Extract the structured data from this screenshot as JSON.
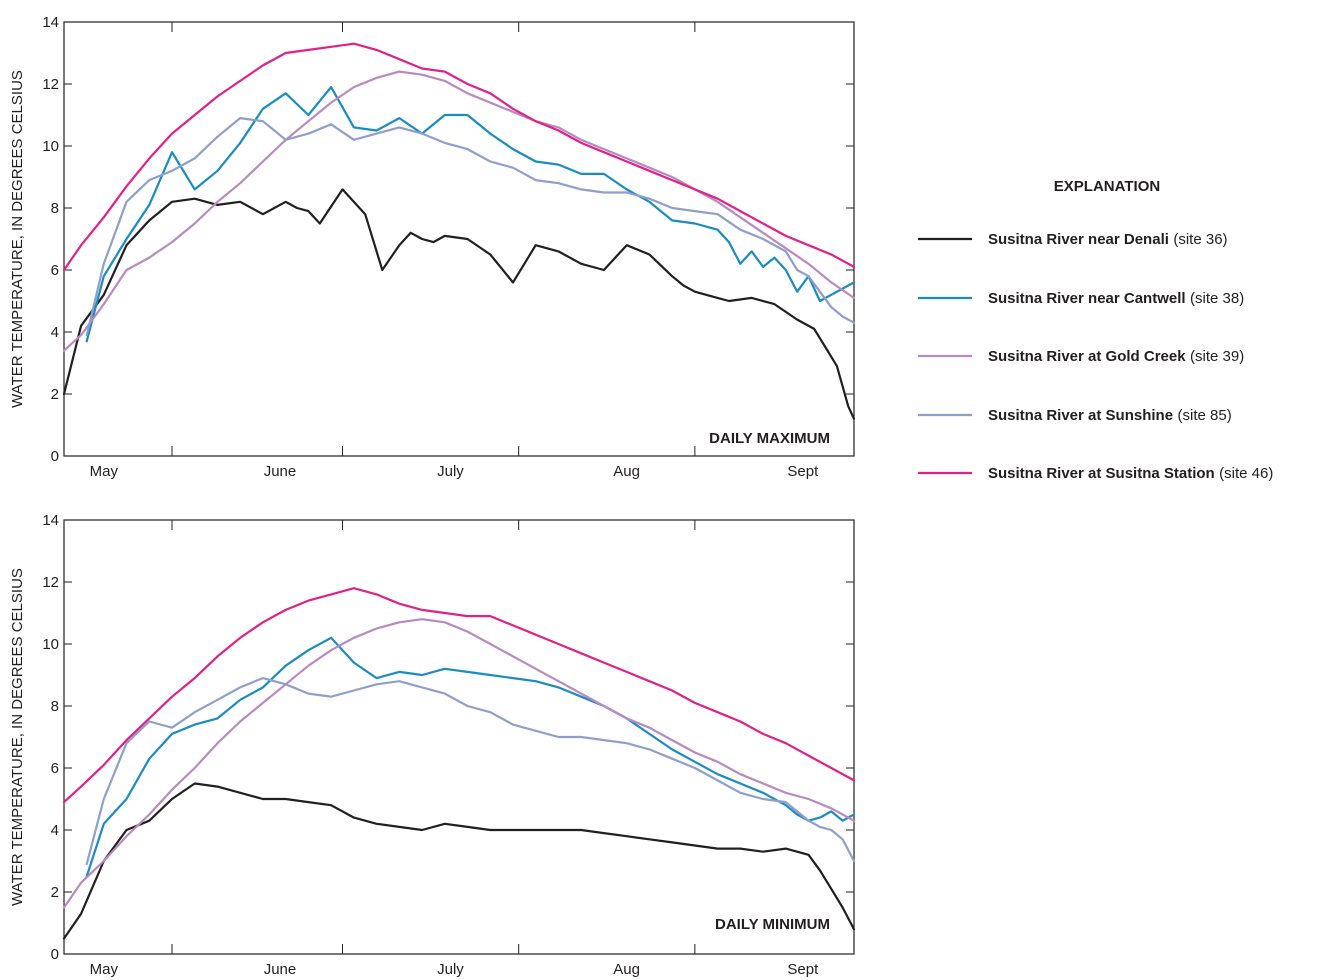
{
  "legend": {
    "title": "EXPLANATION",
    "entries": [
      {
        "name": "Susitna River near Denali",
        "site": "(site 36)",
        "color": "#231f20"
      },
      {
        "name": "Susitna River near Cantwell",
        "site": "(site 38)",
        "color": "#1a8cc1"
      },
      {
        "name": "Susitna River at Gold Creek",
        "site": "(site 39)",
        "color": "#b98ac0"
      },
      {
        "name": "Susitna River at Sunshine",
        "site": "(site 85)",
        "color": "#8f9fcb"
      },
      {
        "name": "Susitna River at Susitna Station",
        "site": "(site 46)",
        "color": "#e0218a"
      }
    ]
  },
  "chart_data": [
    {
      "type": "line",
      "panel_label": "DAILY MAXIMUM",
      "ylabel": "WATER TEMPERATURE, IN DEGREES CELSIUS",
      "ylim": [
        0,
        14
      ],
      "yticks": [
        "0",
        "2",
        "4",
        "6",
        "8",
        "10",
        "12",
        "14"
      ],
      "x_range_days": [
        1,
        140
      ],
      "month_labels": [
        "May",
        "June",
        "July",
        "Aug",
        "Sept"
      ],
      "month_label_days": [
        8,
        39,
        69,
        100,
        131
      ],
      "month_boundaries": [
        20,
        50,
        81,
        112
      ],
      "series": [
        {
          "name": "Susitna River near Denali",
          "color": "#231f20",
          "x": [
            1,
            4,
            8,
            12,
            16,
            20,
            24,
            28,
            32,
            36,
            40,
            42,
            44,
            46,
            50,
            54,
            57,
            60,
            62,
            64,
            66,
            68,
            72,
            76,
            80,
            84,
            88,
            92,
            96,
            100,
            104,
            108,
            110,
            112,
            114,
            116,
            118,
            122,
            126,
            130,
            133,
            135,
            137,
            139,
            140
          ],
          "y": [
            2.0,
            4.2,
            5.2,
            6.8,
            7.6,
            8.2,
            8.3,
            8.1,
            8.2,
            7.8,
            8.2,
            8.0,
            7.9,
            7.5,
            8.6,
            7.8,
            6.0,
            6.8,
            7.2,
            7.0,
            6.9,
            7.1,
            7.0,
            6.5,
            5.6,
            6.8,
            6.6,
            6.2,
            6.0,
            6.8,
            6.5,
            5.8,
            5.5,
            5.3,
            5.2,
            5.1,
            5.0,
            5.1,
            4.9,
            4.4,
            4.1,
            3.5,
            2.9,
            1.6,
            1.2
          ]
        },
        {
          "name": "Susitna River near Cantwell",
          "color": "#1a8cc1",
          "x": [
            5,
            8,
            12,
            16,
            20,
            24,
            28,
            32,
            36,
            40,
            44,
            48,
            52,
            56,
            60,
            64,
            68,
            72,
            76,
            80,
            84,
            88,
            92,
            96,
            100,
            104,
            108,
            112,
            116,
            118,
            120,
            122,
            124,
            126,
            128,
            130,
            132,
            134,
            136,
            138,
            140
          ],
          "y": [
            3.7,
            5.8,
            7.0,
            8.1,
            9.8,
            8.6,
            9.2,
            10.1,
            11.2,
            11.7,
            11.0,
            11.9,
            10.6,
            10.5,
            10.9,
            10.4,
            11.0,
            11.0,
            10.4,
            9.9,
            9.5,
            9.4,
            9.1,
            9.1,
            8.6,
            8.2,
            7.6,
            7.5,
            7.3,
            6.9,
            6.2,
            6.6,
            6.1,
            6.4,
            6.0,
            5.3,
            5.8,
            5.0,
            5.2,
            5.4,
            5.6
          ]
        },
        {
          "name": "Susitna River at Gold Creek",
          "color": "#b98ac0",
          "x": [
            1,
            4,
            8,
            12,
            16,
            20,
            24,
            28,
            32,
            36,
            40,
            44,
            48,
            52,
            56,
            60,
            64,
            68,
            72,
            76,
            80,
            84,
            88,
            92,
            96,
            100,
            104,
            108,
            112,
            116,
            120,
            124,
            128,
            132,
            136,
            140
          ],
          "y": [
            3.4,
            3.9,
            4.9,
            6.0,
            6.4,
            6.9,
            7.5,
            8.2,
            8.8,
            9.5,
            10.2,
            10.8,
            11.4,
            11.9,
            12.2,
            12.4,
            12.3,
            12.1,
            11.7,
            11.4,
            11.1,
            10.8,
            10.6,
            10.2,
            9.9,
            9.6,
            9.3,
            9.0,
            8.6,
            8.2,
            7.7,
            7.2,
            6.7,
            6.2,
            5.6,
            5.1
          ]
        },
        {
          "name": "Susitna River at Sunshine",
          "color": "#8f9fcb",
          "x": [
            5,
            8,
            12,
            16,
            20,
            24,
            28,
            32,
            36,
            40,
            44,
            48,
            52,
            56,
            60,
            64,
            68,
            72,
            76,
            80,
            84,
            88,
            92,
            96,
            100,
            104,
            108,
            112,
            116,
            120,
            124,
            128,
            130,
            132,
            134,
            136,
            138,
            140
          ],
          "y": [
            3.9,
            6.2,
            8.2,
            8.9,
            9.2,
            9.6,
            10.3,
            10.9,
            10.8,
            10.2,
            10.4,
            10.7,
            10.2,
            10.4,
            10.6,
            10.4,
            10.1,
            9.9,
            9.5,
            9.3,
            8.9,
            8.8,
            8.6,
            8.5,
            8.5,
            8.3,
            8.0,
            7.9,
            7.8,
            7.3,
            7.0,
            6.6,
            6.0,
            5.8,
            5.3,
            4.8,
            4.5,
            4.3
          ]
        },
        {
          "name": "Susitna River at Susitna Station",
          "color": "#e0218a",
          "x": [
            1,
            4,
            8,
            12,
            16,
            20,
            24,
            28,
            32,
            36,
            40,
            44,
            48,
            52,
            56,
            60,
            64,
            68,
            72,
            76,
            80,
            84,
            88,
            92,
            96,
            100,
            104,
            108,
            112,
            116,
            120,
            124,
            128,
            132,
            136,
            140
          ],
          "y": [
            6.0,
            6.8,
            7.7,
            8.7,
            9.6,
            10.4,
            11.0,
            11.6,
            12.1,
            12.6,
            13.0,
            13.1,
            13.2,
            13.3,
            13.1,
            12.8,
            12.5,
            12.4,
            12.0,
            11.7,
            11.2,
            10.8,
            10.5,
            10.1,
            9.8,
            9.5,
            9.2,
            8.9,
            8.6,
            8.3,
            7.9,
            7.5,
            7.1,
            6.8,
            6.5,
            6.1
          ]
        }
      ]
    },
    {
      "type": "line",
      "panel_label": "DAILY MINIMUM",
      "ylabel": "WATER TEMPERATURE, IN DEGREES CELSIUS",
      "ylim": [
        0,
        14
      ],
      "yticks": [
        "0",
        "2",
        "4",
        "6",
        "8",
        "10",
        "12",
        "14"
      ],
      "x_range_days": [
        1,
        140
      ],
      "month_labels": [
        "May",
        "June",
        "July",
        "Aug",
        "Sept"
      ],
      "month_label_days": [
        8,
        39,
        69,
        100,
        131
      ],
      "month_boundaries": [
        20,
        50,
        81,
        112
      ],
      "series": [
        {
          "name": "Susitna River near Denali",
          "color": "#231f20",
          "x": [
            1,
            4,
            8,
            12,
            16,
            20,
            24,
            28,
            32,
            36,
            40,
            44,
            48,
            52,
            56,
            60,
            64,
            68,
            72,
            76,
            80,
            84,
            88,
            92,
            96,
            100,
            104,
            108,
            112,
            116,
            120,
            124,
            128,
            132,
            134,
            136,
            138,
            140
          ],
          "y": [
            0.5,
            1.3,
            3.0,
            4.0,
            4.3,
            5.0,
            5.5,
            5.4,
            5.2,
            5.0,
            5.0,
            4.9,
            4.8,
            4.4,
            4.2,
            4.1,
            4.0,
            4.2,
            4.1,
            4.0,
            4.0,
            4.0,
            4.0,
            4.0,
            3.9,
            3.8,
            3.7,
            3.6,
            3.5,
            3.4,
            3.4,
            3.3,
            3.4,
            3.2,
            2.7,
            2.1,
            1.5,
            0.8
          ]
        },
        {
          "name": "Susitna River near Cantwell",
          "color": "#1a8cc1",
          "x": [
            5,
            8,
            12,
            16,
            20,
            24,
            28,
            32,
            36,
            40,
            44,
            48,
            52,
            56,
            60,
            64,
            68,
            72,
            76,
            80,
            84,
            88,
            92,
            96,
            100,
            104,
            108,
            112,
            116,
            120,
            124,
            128,
            130,
            132,
            134,
            136,
            138,
            140
          ],
          "y": [
            2.5,
            4.2,
            5.0,
            6.3,
            7.1,
            7.4,
            7.6,
            8.2,
            8.6,
            9.3,
            9.8,
            10.2,
            9.4,
            8.9,
            9.1,
            9.0,
            9.2,
            9.1,
            9.0,
            8.9,
            8.8,
            8.6,
            8.3,
            8.0,
            7.6,
            7.1,
            6.6,
            6.2,
            5.8,
            5.5,
            5.2,
            4.8,
            4.5,
            4.3,
            4.4,
            4.6,
            4.3,
            4.5
          ]
        },
        {
          "name": "Susitna River at Gold Creek",
          "color": "#b98ac0",
          "x": [
            1,
            4,
            8,
            12,
            16,
            20,
            24,
            28,
            32,
            36,
            40,
            44,
            48,
            52,
            56,
            60,
            64,
            68,
            72,
            76,
            80,
            84,
            88,
            92,
            96,
            100,
            104,
            108,
            112,
            116,
            120,
            124,
            128,
            132,
            136,
            140
          ],
          "y": [
            1.5,
            2.3,
            3.0,
            3.8,
            4.5,
            5.3,
            6.0,
            6.8,
            7.5,
            8.1,
            8.7,
            9.3,
            9.8,
            10.2,
            10.5,
            10.7,
            10.8,
            10.7,
            10.4,
            10.0,
            9.6,
            9.2,
            8.8,
            8.4,
            8.0,
            7.6,
            7.3,
            6.9,
            6.5,
            6.2,
            5.8,
            5.5,
            5.2,
            5.0,
            4.7,
            4.3
          ]
        },
        {
          "name": "Susitna River at Sunshine",
          "color": "#8f9fcb",
          "x": [
            5,
            8,
            12,
            16,
            20,
            24,
            28,
            32,
            36,
            40,
            44,
            48,
            52,
            56,
            60,
            64,
            68,
            72,
            76,
            80,
            84,
            88,
            92,
            96,
            100,
            104,
            108,
            112,
            116,
            120,
            124,
            128,
            130,
            132,
            134,
            136,
            138,
            140
          ],
          "y": [
            2.9,
            5.0,
            6.8,
            7.5,
            7.3,
            7.8,
            8.2,
            8.6,
            8.9,
            8.7,
            8.4,
            8.3,
            8.5,
            8.7,
            8.8,
            8.6,
            8.4,
            8.0,
            7.8,
            7.4,
            7.2,
            7.0,
            7.0,
            6.9,
            6.8,
            6.6,
            6.3,
            6.0,
            5.6,
            5.2,
            5.0,
            4.9,
            4.6,
            4.3,
            4.1,
            4.0,
            3.7,
            3.0
          ]
        },
        {
          "name": "Susitna River at Susitna Station",
          "color": "#e0218a",
          "x": [
            1,
            4,
            8,
            12,
            16,
            20,
            24,
            28,
            32,
            36,
            40,
            44,
            48,
            52,
            56,
            60,
            64,
            68,
            72,
            76,
            80,
            84,
            88,
            92,
            96,
            100,
            104,
            108,
            112,
            116,
            120,
            124,
            128,
            132,
            136,
            140
          ],
          "y": [
            4.9,
            5.4,
            6.1,
            6.9,
            7.6,
            8.3,
            8.9,
            9.6,
            10.2,
            10.7,
            11.1,
            11.4,
            11.6,
            11.8,
            11.6,
            11.3,
            11.1,
            11.0,
            10.9,
            10.9,
            10.6,
            10.3,
            10.0,
            9.7,
            9.4,
            9.1,
            8.8,
            8.5,
            8.1,
            7.8,
            7.5,
            7.1,
            6.8,
            6.4,
            6.0,
            5.6
          ]
        }
      ]
    }
  ]
}
